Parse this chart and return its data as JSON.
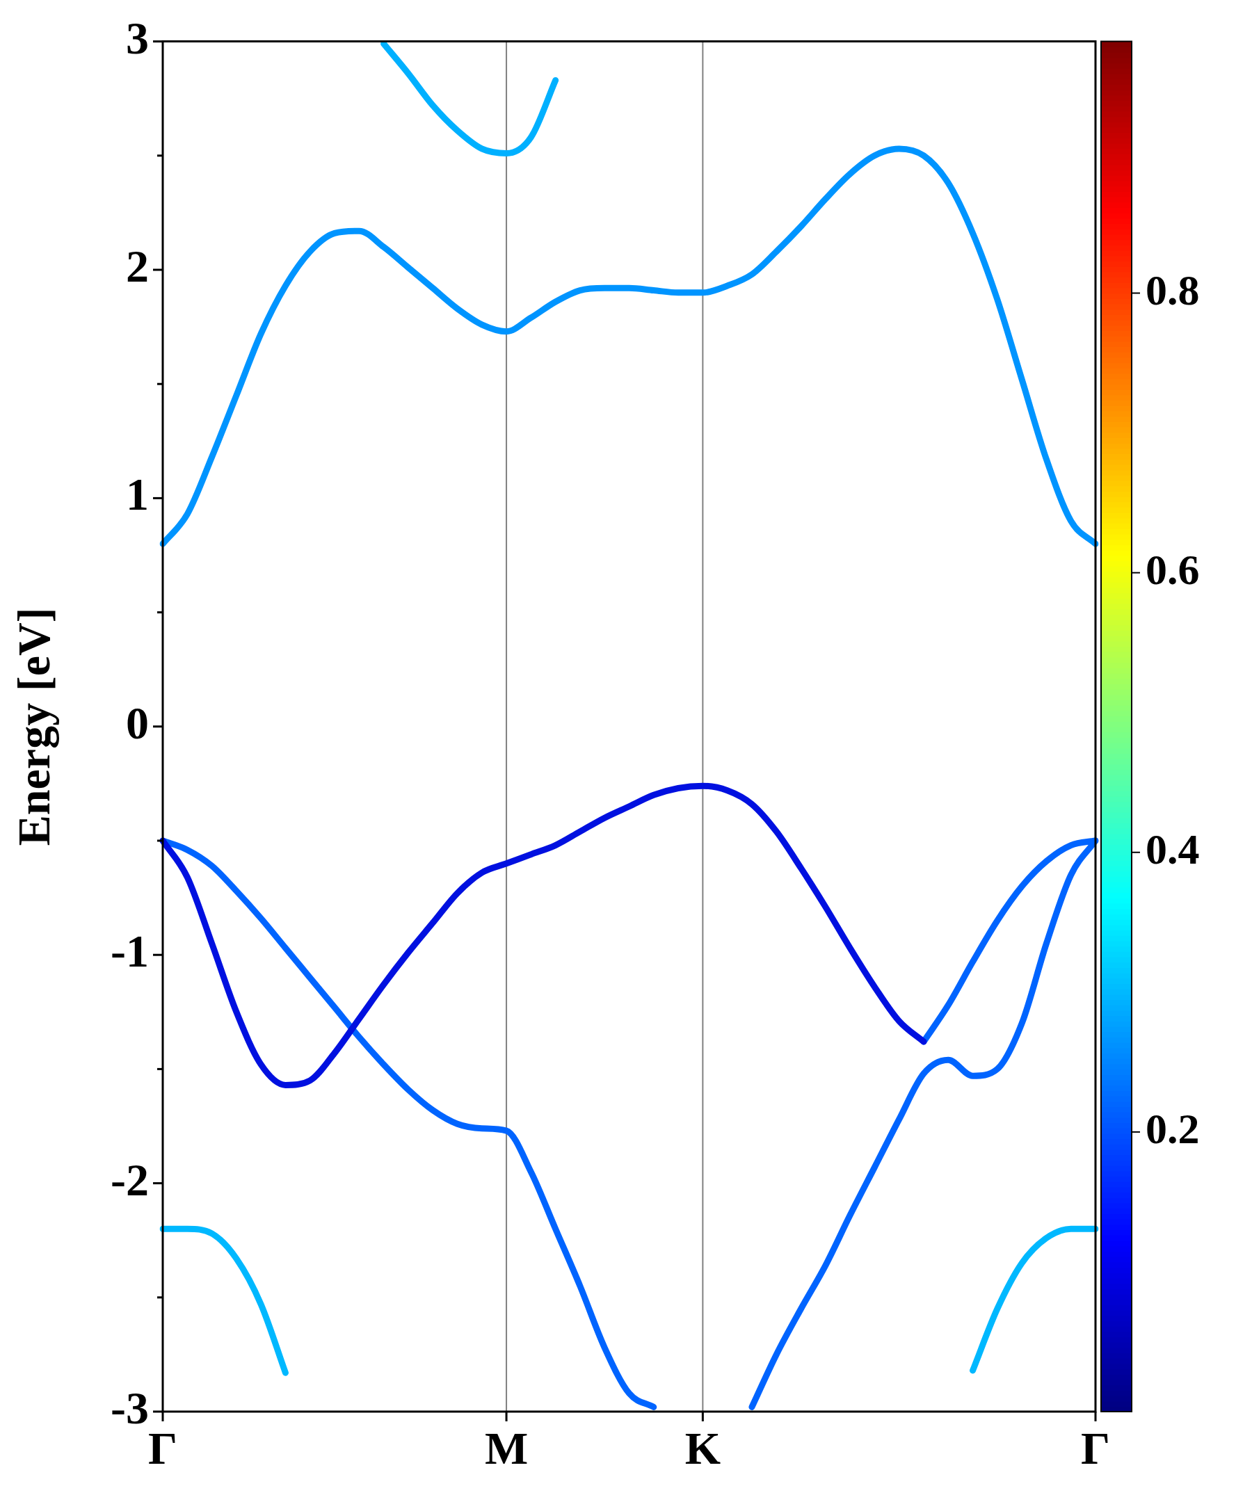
{
  "chart_data": {
    "type": "line",
    "ylabel": "Energy [eV]",
    "categories": [
      "Γ",
      null,
      null,
      null,
      null,
      null,
      null,
      null,
      null,
      null,
      null,
      null,
      null,
      null,
      "M",
      null,
      null,
      null,
      null,
      null,
      null,
      null,
      "K",
      null,
      null,
      null,
      null,
      null,
      null,
      null,
      null,
      null,
      null,
      null,
      null,
      null,
      null,
      null,
      "Γ"
    ],
    "ylim": [
      -3,
      3
    ],
    "yticks": [
      -3,
      {
        "value": -2.5,
        "label": null
      },
      -2,
      {
        "value": -1.5,
        "label": null
      },
      -1,
      {
        "value": -0.5,
        "label": null
      },
      0,
      {
        "value": 0.5,
        "label": null
      },
      1,
      {
        "value": 1.5,
        "label": null
      },
      2,
      {
        "value": 2.5,
        "label": null
      },
      3
    ],
    "grid": false,
    "legend": false,
    "marker": "none",
    "line_style": "solid",
    "clim": [
      0,
      0.98
    ],
    "cticks": [
      0.2,
      0.4,
      0.6,
      0.8
    ],
    "ref_lines": [
      {
        "axis": "x",
        "value": "M",
        "label": null,
        "color": "#808080"
      },
      {
        "axis": "x",
        "value": "K",
        "label": null,
        "color": "#808080"
      }
    ],
    "series": [
      {
        "color": "#0094ff",
        "values": [
          0.8,
          0.93,
          1.18,
          1.45,
          1.72,
          1.93,
          2.08,
          2.16,
          2.17,
          2.1,
          2.01,
          1.92,
          1.83,
          1.76,
          1.73,
          1.79,
          1.86,
          1.91,
          1.92,
          1.92,
          1.91,
          1.9,
          1.9,
          1.93,
          1.98,
          2.08,
          2.19,
          2.31,
          2.42,
          2.5,
          2.53,
          2.5,
          2.38,
          2.16,
          1.87,
          1.52,
          1.17,
          0.9,
          0.8
        ]
      },
      {
        "color": "#00b0ff",
        "values": [
          null,
          null,
          null,
          null,
          null,
          null,
          null,
          null,
          null,
          2.99,
          2.86,
          2.72,
          2.61,
          2.53,
          2.51,
          2.58,
          2.83,
          null,
          null,
          null,
          null,
          null,
          null,
          null,
          null,
          null,
          null,
          null,
          null,
          null,
          null,
          null,
          null,
          null,
          null,
          null,
          null,
          null,
          null
        ]
      },
      {
        "color": "#0010e0",
        "values": [
          -0.5,
          -0.66,
          -0.95,
          -1.25,
          -1.48,
          -1.57,
          -1.55,
          -1.43,
          -1.28,
          -1.13,
          -0.99,
          -0.86,
          -0.73,
          -0.64,
          -0.6,
          -0.56,
          -0.52,
          -0.46,
          -0.4,
          -0.35,
          -0.3,
          -0.27,
          -0.26,
          -0.28,
          -0.34,
          -0.46,
          -0.62,
          -0.79,
          -0.97,
          -1.14,
          -1.29,
          -1.38,
          null,
          null,
          null,
          null,
          null,
          null,
          null
        ]
      },
      {
        "color": "#0064ff",
        "values": [
          null,
          null,
          null,
          null,
          null,
          null,
          null,
          null,
          null,
          null,
          null,
          null,
          null,
          null,
          null,
          null,
          null,
          null,
          null,
          null,
          null,
          null,
          null,
          null,
          null,
          null,
          null,
          null,
          null,
          null,
          null,
          -1.38,
          -1.22,
          -1.03,
          -0.85,
          -0.7,
          -0.59,
          -0.52,
          -0.5
        ]
      },
      {
        "color": "#0064ff",
        "values": [
          -0.5,
          -0.54,
          -0.61,
          -0.72,
          -0.84,
          -0.97,
          -1.1,
          -1.23,
          -1.36,
          -1.48,
          -1.59,
          -1.68,
          -1.74,
          -1.76,
          -1.77,
          -1.95,
          -2.2,
          -2.45,
          -2.72,
          -2.92,
          -2.98,
          null,
          null,
          null,
          -2.98,
          -2.75,
          -2.55,
          -2.36,
          -2.14,
          -1.93,
          -1.72,
          -1.52,
          -1.46,
          -1.53,
          -1.5,
          -1.3,
          -0.95,
          -0.65,
          -0.5
        ]
      },
      {
        "color": "#00b8ff",
        "values": [
          -2.2,
          -2.2,
          -2.22,
          -2.33,
          -2.53,
          -2.83,
          null,
          null,
          null,
          null,
          null,
          null,
          null,
          null,
          null,
          null,
          null,
          null,
          null,
          null,
          null,
          null,
          null,
          null,
          null,
          null,
          null,
          null,
          null,
          null,
          null,
          null,
          null,
          -2.82,
          -2.55,
          -2.35,
          -2.24,
          -2.2,
          -2.2
        ]
      }
    ]
  }
}
